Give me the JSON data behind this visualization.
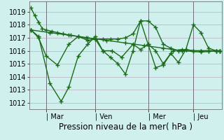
{
  "background_color": "#d0f0ee",
  "grid_color": "#c0b8c8",
  "line_color": "#1a6b1a",
  "marker_style": "P",
  "marker_size": 3,
  "line_width": 1.0,
  "tick_fontsize": 7,
  "xlabel_label": "Pression niveau de la mer( hPa )",
  "xlabel_fontsize": 8.5,
  "ylim": [
    1011.5,
    1019.8
  ],
  "yticks": [
    1012,
    1013,
    1014,
    1015,
    1016,
    1017,
    1018,
    1019
  ],
  "xtick_labels": [
    "| Mar",
    "| Ven",
    "| Mer",
    "| Jeu"
  ],
  "xtick_positions": [
    0.08,
    0.34,
    0.62,
    0.86
  ],
  "series1_x": [
    0.0,
    0.02,
    0.04,
    0.06,
    0.08,
    0.11,
    0.14,
    0.17,
    0.21,
    0.25,
    0.29,
    0.34,
    0.38,
    0.42,
    0.46,
    0.5,
    0.54,
    0.58,
    0.62,
    0.66,
    0.7,
    0.74,
    0.78,
    0.82,
    0.86,
    0.9,
    0.94,
    0.98,
    1.0
  ],
  "series1_y": [
    1019.3,
    1018.7,
    1018.2,
    1017.7,
    1017.6,
    1017.5,
    1017.4,
    1017.3,
    1017.2,
    1017.1,
    1017.0,
    1016.9,
    1016.9,
    1016.9,
    1016.9,
    1017.0,
    1017.3,
    1018.3,
    1018.3,
    1017.8,
    1016.5,
    1016.2,
    1016.0,
    1016.1,
    1018.0,
    1017.4,
    1016.2,
    1016.0,
    1016.0
  ],
  "series2_x": [
    0.0,
    0.04,
    0.1,
    0.16,
    0.2,
    0.25,
    0.3,
    0.34,
    0.38,
    0.43,
    0.48,
    0.54,
    0.58,
    0.62,
    0.66,
    0.7,
    0.75,
    0.8,
    0.86,
    0.9,
    0.94,
    0.98,
    1.0
  ],
  "series2_y": [
    1017.6,
    1017.1,
    1013.5,
    1012.1,
    1013.2,
    1015.6,
    1016.5,
    1017.1,
    1016.0,
    1016.0,
    1015.5,
    1016.5,
    1016.1,
    1016.5,
    1014.7,
    1014.9,
    1016.0,
    1016.1,
    1016.0,
    1016.0,
    1016.0,
    1016.0,
    1016.0
  ],
  "series3_x": [
    0.0,
    0.04,
    0.08,
    0.14,
    0.2,
    0.25,
    0.3,
    0.34,
    0.38,
    0.42,
    0.46,
    0.5,
    0.54,
    0.58,
    0.62,
    0.66,
    0.7,
    0.74,
    0.78,
    0.82,
    0.86,
    0.9,
    0.94,
    0.98,
    1.0
  ],
  "series3_y": [
    1017.6,
    1017.0,
    1015.6,
    1014.9,
    1016.5,
    1017.1,
    1016.8,
    1016.9,
    1016.0,
    1015.5,
    1015.0,
    1014.2,
    1016.0,
    1018.3,
    1016.5,
    1016.0,
    1015.0,
    1015.8,
    1015.1,
    1016.1,
    1016.0,
    1016.0,
    1016.0,
    1016.0,
    1016.0
  ],
  "series4_x": [
    0.0,
    0.1,
    0.2,
    0.3,
    0.4,
    0.5,
    0.6,
    0.7,
    0.8,
    0.9,
    1.0
  ],
  "series4_y": [
    1017.6,
    1017.4,
    1017.2,
    1017.0,
    1016.8,
    1016.6,
    1016.4,
    1016.2,
    1016.0,
    1015.9,
    1016.0
  ],
  "vline_color": "#707080",
  "vline_positions": [
    0.08,
    0.34,
    0.62,
    0.86
  ]
}
